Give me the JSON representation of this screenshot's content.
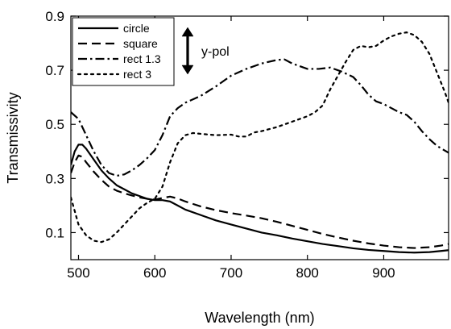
{
  "chart_data": {
    "type": "line",
    "title": "",
    "xlabel": "Wavelength (nm)",
    "ylabel": "Transmissivity",
    "xlim": [
      490,
      985
    ],
    "ylim": [
      0,
      0.9
    ],
    "x_ticks": [
      500,
      600,
      700,
      800,
      900
    ],
    "x_tick_labels": [
      "500",
      "600",
      "700",
      "800",
      "900"
    ],
    "y_ticks": [
      0.1,
      0.3,
      0.5,
      0.7,
      0.9
    ],
    "y_tick_labels": [
      "0.1",
      "0.3",
      "0.5",
      "0.7",
      "0.9"
    ],
    "grid": false,
    "legend_position": "top-left",
    "annotation": {
      "text": "y-pol",
      "symbol": "double-vertical-arrow"
    },
    "series": [
      {
        "name": "circle",
        "style": "solid",
        "color": "#000000",
        "points": [
          [
            490,
            0.35
          ],
          [
            495,
            0.4
          ],
          [
            500,
            0.425
          ],
          [
            505,
            0.425
          ],
          [
            510,
            0.41
          ],
          [
            520,
            0.37
          ],
          [
            530,
            0.33
          ],
          [
            540,
            0.3
          ],
          [
            550,
            0.275
          ],
          [
            560,
            0.26
          ],
          [
            570,
            0.245
          ],
          [
            580,
            0.235
          ],
          [
            590,
            0.225
          ],
          [
            600,
            0.22
          ],
          [
            610,
            0.22
          ],
          [
            620,
            0.215
          ],
          [
            630,
            0.2
          ],
          [
            640,
            0.185
          ],
          [
            660,
            0.165
          ],
          [
            680,
            0.145
          ],
          [
            700,
            0.13
          ],
          [
            720,
            0.115
          ],
          [
            740,
            0.1
          ],
          [
            760,
            0.09
          ],
          [
            780,
            0.078
          ],
          [
            800,
            0.068
          ],
          [
            820,
            0.058
          ],
          [
            840,
            0.05
          ],
          [
            860,
            0.042
          ],
          [
            880,
            0.036
          ],
          [
            900,
            0.032
          ],
          [
            920,
            0.028
          ],
          [
            940,
            0.026
          ],
          [
            960,
            0.028
          ],
          [
            975,
            0.032
          ],
          [
            985,
            0.035
          ]
        ]
      },
      {
        "name": "square",
        "style": "dashed",
        "color": "#000000",
        "points": [
          [
            490,
            0.32
          ],
          [
            495,
            0.36
          ],
          [
            500,
            0.385
          ],
          [
            505,
            0.38
          ],
          [
            510,
            0.36
          ],
          [
            520,
            0.325
          ],
          [
            530,
            0.295
          ],
          [
            540,
            0.27
          ],
          [
            550,
            0.255
          ],
          [
            560,
            0.245
          ],
          [
            570,
            0.237
          ],
          [
            580,
            0.23
          ],
          [
            590,
            0.225
          ],
          [
            600,
            0.222
          ],
          [
            610,
            0.228
          ],
          [
            620,
            0.233
          ],
          [
            630,
            0.226
          ],
          [
            640,
            0.215
          ],
          [
            660,
            0.197
          ],
          [
            680,
            0.183
          ],
          [
            700,
            0.172
          ],
          [
            720,
            0.163
          ],
          [
            740,
            0.153
          ],
          [
            760,
            0.14
          ],
          [
            780,
            0.125
          ],
          [
            800,
            0.11
          ],
          [
            820,
            0.095
          ],
          [
            840,
            0.082
          ],
          [
            860,
            0.07
          ],
          [
            880,
            0.06
          ],
          [
            900,
            0.052
          ],
          [
            920,
            0.046
          ],
          [
            940,
            0.043
          ],
          [
            960,
            0.046
          ],
          [
            975,
            0.052
          ],
          [
            985,
            0.058
          ]
        ]
      },
      {
        "name": "rect 1.3",
        "style": "dash-dot",
        "color": "#000000",
        "points": [
          [
            490,
            0.545
          ],
          [
            500,
            0.52
          ],
          [
            510,
            0.46
          ],
          [
            520,
            0.4
          ],
          [
            530,
            0.35
          ],
          [
            540,
            0.32
          ],
          [
            550,
            0.31
          ],
          [
            560,
            0.315
          ],
          [
            570,
            0.33
          ],
          [
            580,
            0.35
          ],
          [
            590,
            0.375
          ],
          [
            600,
            0.405
          ],
          [
            610,
            0.46
          ],
          [
            620,
            0.53
          ],
          [
            630,
            0.56
          ],
          [
            640,
            0.58
          ],
          [
            660,
            0.605
          ],
          [
            680,
            0.64
          ],
          [
            700,
            0.68
          ],
          [
            720,
            0.705
          ],
          [
            740,
            0.725
          ],
          [
            760,
            0.738
          ],
          [
            770,
            0.74
          ],
          [
            780,
            0.725
          ],
          [
            800,
            0.705
          ],
          [
            815,
            0.705
          ],
          [
            830,
            0.71
          ],
          [
            845,
            0.695
          ],
          [
            860,
            0.675
          ],
          [
            870,
            0.645
          ],
          [
            880,
            0.61
          ],
          [
            890,
            0.585
          ],
          [
            900,
            0.575
          ],
          [
            910,
            0.56
          ],
          [
            920,
            0.545
          ],
          [
            930,
            0.535
          ],
          [
            940,
            0.51
          ],
          [
            950,
            0.475
          ],
          [
            960,
            0.445
          ],
          [
            970,
            0.42
          ],
          [
            985,
            0.395
          ]
        ]
      },
      {
        "name": "rect 3",
        "style": "dotted",
        "color": "#000000",
        "points": [
          [
            490,
            0.23
          ],
          [
            495,
            0.18
          ],
          [
            500,
            0.13
          ],
          [
            510,
            0.09
          ],
          [
            520,
            0.07
          ],
          [
            530,
            0.065
          ],
          [
            540,
            0.075
          ],
          [
            550,
            0.1
          ],
          [
            560,
            0.13
          ],
          [
            570,
            0.16
          ],
          [
            580,
            0.19
          ],
          [
            590,
            0.21
          ],
          [
            600,
            0.225
          ],
          [
            610,
            0.27
          ],
          [
            620,
            0.36
          ],
          [
            630,
            0.43
          ],
          [
            640,
            0.46
          ],
          [
            650,
            0.468
          ],
          [
            660,
            0.465
          ],
          [
            680,
            0.46
          ],
          [
            700,
            0.462
          ],
          [
            710,
            0.455
          ],
          [
            720,
            0.455
          ],
          [
            730,
            0.47
          ],
          [
            740,
            0.475
          ],
          [
            760,
            0.49
          ],
          [
            780,
            0.51
          ],
          [
            800,
            0.53
          ],
          [
            810,
            0.545
          ],
          [
            820,
            0.57
          ],
          [
            830,
            0.63
          ],
          [
            840,
            0.68
          ],
          [
            850,
            0.73
          ],
          [
            860,
            0.775
          ],
          [
            870,
            0.79
          ],
          [
            880,
            0.785
          ],
          [
            890,
            0.79
          ],
          [
            900,
            0.81
          ],
          [
            910,
            0.825
          ],
          [
            920,
            0.835
          ],
          [
            930,
            0.84
          ],
          [
            940,
            0.83
          ],
          [
            950,
            0.805
          ],
          [
            960,
            0.76
          ],
          [
            970,
            0.69
          ],
          [
            980,
            0.62
          ],
          [
            985,
            0.58
          ]
        ]
      }
    ]
  }
}
